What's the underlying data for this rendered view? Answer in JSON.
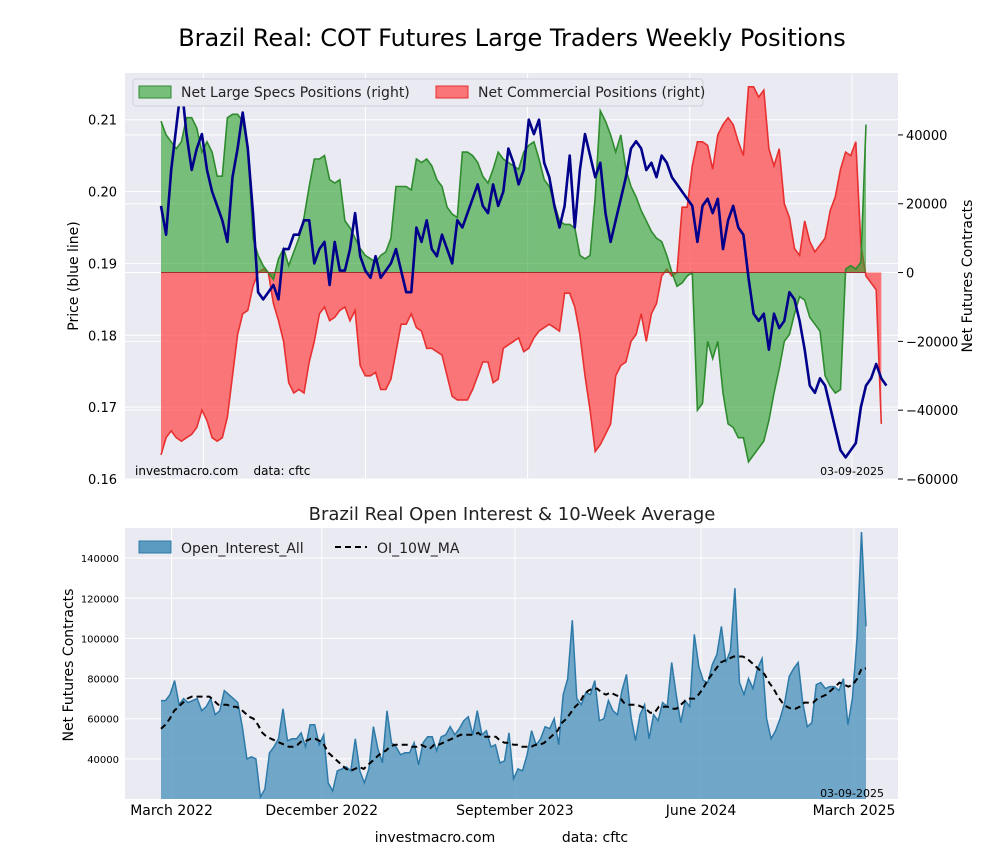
{
  "figure_title": "Brazil Real: COT Futures Large Traders Weekly Positions",
  "colors": {
    "plot_bg": "#eaeaf2",
    "grid": "#ffffff",
    "specs_fill": "#2ca02c",
    "specs_line": "#2e8b2e",
    "commercial_fill": "#ff4d4d",
    "commercial_line": "#e83030",
    "price_line": "#00008b",
    "oi_fill": "#5b9bc2",
    "oi_line": "#2d7aa8",
    "ma_line": "#000000"
  },
  "chart_data": [
    {
      "type": "area",
      "title": "",
      "ylabel_left": "Price (blue line)",
      "ylabel_right": "Net Futures Contracts",
      "left_ylim": [
        0.16,
        0.2165
      ],
      "left_yticks": [
        0.16,
        0.17,
        0.18,
        0.19,
        0.2,
        0.21
      ],
      "left_ytick_labels": [
        "0.16",
        "0.17",
        "0.18",
        "0.19",
        "0.20",
        "0.21"
      ],
      "right_ylim": [
        -60000,
        58000
      ],
      "right_yticks": [
        -60000,
        -40000,
        -20000,
        0,
        20000,
        40000
      ],
      "right_ytick_labels": [
        "−60000",
        "−40000",
        "−20000",
        "0",
        "20000",
        "40000"
      ],
      "legend": [
        "Net Large Specs Positions (right)",
        "Net Commercial Positions (right)"
      ],
      "legend_position": "top-left",
      "annotation_left": "investmacro.com    data: cftc",
      "annotation_right": "03-09-2025",
      "grid": true,
      "series": [
        {
          "name": "Net Large Specs Positions (right)",
          "values": [
            44000,
            40000,
            38000,
            36000,
            38000,
            45000,
            45000,
            42000,
            35000,
            38000,
            35000,
            28000,
            28000,
            45000,
            46000,
            46000,
            44000,
            37000,
            10000,
            5000,
            2000,
            0,
            -2000,
            4000,
            7000,
            2000,
            6000,
            10000,
            16000,
            25000,
            33000,
            33000,
            34000,
            27000,
            26000,
            27000,
            15000,
            13000,
            10000,
            7000,
            5000,
            4000,
            3000,
            5000,
            6000,
            10000,
            25000,
            25000,
            25000,
            24000,
            33000,
            32000,
            33000,
            31000,
            27000,
            25000,
            19000,
            17000,
            16000,
            35000,
            35000,
            34000,
            32000,
            28000,
            26000,
            30000,
            35000,
            33000,
            32000,
            31000,
            30000,
            35000,
            37000,
            38000,
            33000,
            27000,
            25000,
            20000,
            15000,
            14000,
            14000,
            13000,
            5000,
            4000,
            5000,
            22000,
            47000,
            44000,
            40000,
            35000,
            40000,
            30000,
            25000,
            22000,
            18000,
            15000,
            12000,
            10000,
            9000,
            5000,
            0,
            -4000,
            -3000,
            -1000,
            0,
            -40000,
            -38000,
            -20000,
            -25000,
            -20000,
            -35000,
            -44000,
            -45000,
            -48000,
            -48000,
            -55000,
            -53000,
            -51000,
            -49000,
            -43000,
            -35000,
            -28000,
            -20000,
            -18000,
            -12000,
            -7000,
            -8000,
            -13000,
            -15000,
            -17000,
            -30000,
            -33000,
            -35000,
            -34000,
            1000,
            2000,
            1000,
            3000,
            43000
          ]
        },
        {
          "name": "Net Commercial Positions (right)",
          "values": [
            -53000,
            -48000,
            -46000,
            -48000,
            -49000,
            -48000,
            -47000,
            -45000,
            -40000,
            -43000,
            -48000,
            -49000,
            -48000,
            -42000,
            -30000,
            -18000,
            -12000,
            -11000,
            -4000,
            0,
            1000,
            0,
            -9000,
            -14000,
            -20000,
            -32000,
            -35000,
            -34000,
            -35000,
            -26000,
            -20000,
            -12000,
            -10000,
            -14000,
            -13000,
            -11000,
            -10000,
            -14000,
            -11000,
            -27000,
            -30000,
            -30000,
            -29000,
            -34000,
            -34000,
            -31000,
            -23000,
            -15000,
            -15000,
            -12000,
            -16000,
            -17000,
            -22000,
            -22000,
            -23000,
            -24000,
            -30000,
            -36000,
            -37000,
            -37000,
            -37000,
            -34000,
            -30000,
            -26000,
            -26000,
            -32000,
            -31000,
            -22000,
            -21000,
            -20000,
            -19000,
            -23000,
            -22000,
            -19000,
            -17000,
            -16000,
            -15000,
            -16000,
            -17000,
            -6000,
            -6000,
            -10000,
            -18000,
            -30000,
            -40000,
            -52000,
            -50000,
            -47000,
            -44000,
            -30000,
            -27000,
            -26000,
            -20000,
            -18000,
            -12000,
            -20000,
            -12000,
            -9000,
            -1000,
            1000,
            -1000,
            0,
            19000,
            19000,
            31000,
            38000,
            38000,
            37000,
            30000,
            40000,
            43000,
            45000,
            43000,
            38000,
            34000,
            54000,
            54000,
            51000,
            53000,
            36000,
            31000,
            36000,
            20000,
            16000,
            7000,
            5000,
            15000,
            9000,
            6000,
            8000,
            10000,
            18000,
            22000,
            30000,
            35000,
            34000,
            38000,
            8000,
            -1000,
            -3000,
            -5000,
            -44000
          ]
        },
        {
          "name": "",
          "axis": "left",
          "values": [
            0.198,
            0.194,
            0.203,
            0.209,
            0.215,
            0.208,
            0.203,
            0.206,
            0.208,
            0.203,
            0.2,
            0.198,
            0.196,
            0.193,
            0.202,
            0.206,
            0.211,
            0.206,
            0.197,
            0.186,
            0.185,
            0.186,
            0.187,
            0.185,
            0.192,
            0.192,
            0.194,
            0.194,
            0.196,
            0.196,
            0.19,
            0.192,
            0.193,
            0.187,
            0.193,
            0.189,
            0.189,
            0.192,
            0.197,
            0.191,
            0.189,
            0.188,
            0.191,
            0.188,
            0.189,
            0.19,
            0.192,
            0.189,
            0.186,
            0.186,
            0.195,
            0.193,
            0.196,
            0.192,
            0.191,
            0.194,
            0.192,
            0.19,
            0.196,
            0.195,
            0.197,
            0.199,
            0.201,
            0.198,
            0.197,
            0.201,
            0.198,
            0.2,
            0.206,
            0.204,
            0.201,
            0.203,
            0.21,
            0.208,
            0.21,
            0.204,
            0.202,
            0.198,
            0.195,
            0.198,
            0.205,
            0.195,
            0.203,
            0.208,
            0.205,
            0.202,
            0.204,
            0.197,
            0.193,
            0.196,
            0.199,
            0.202,
            0.206,
            0.207,
            0.206,
            0.203,
            0.204,
            0.202,
            0.205,
            0.204,
            0.202,
            0.201,
            0.2,
            0.199,
            0.198,
            0.193,
            0.198,
            0.199,
            0.197,
            0.199,
            0.192,
            0.196,
            0.198,
            0.195,
            0.194,
            0.188,
            0.183,
            0.182,
            0.183,
            0.178,
            0.183,
            0.181,
            0.182,
            0.186,
            0.185,
            0.182,
            0.178,
            0.173,
            0.172,
            0.174,
            0.173,
            0.17,
            0.167,
            0.164,
            0.163,
            0.164,
            0.165,
            0.17,
            0.173,
            0.174,
            0.176,
            0.174,
            0.173
          ]
        }
      ]
    },
    {
      "type": "area",
      "title": "Brazil Real Open Interest & 10-Week Average",
      "ylabel": "Net Futures Contracts",
      "ylim": [
        20000,
        155000
      ],
      "yticks": [
        40000,
        60000,
        80000,
        100000,
        120000,
        140000
      ],
      "ytick_labels": [
        "40000",
        "60000",
        "80000",
        "100000",
        "120000",
        "140000"
      ],
      "x_ticks": [
        "March 2022",
        "December 2022",
        "September 2023",
        "June 2024",
        "March 2025"
      ],
      "legend": [
        "Open_Interest_All",
        "OI_10W_MA"
      ],
      "legend_position": "top-left",
      "annotation_right": "03-09-2025",
      "grid": true,
      "series": [
        {
          "name": "Open_Interest_All",
          "values": [
            69000,
            69000,
            72000,
            79000,
            67000,
            70000,
            68000,
            69000,
            70000,
            64000,
            66000,
            70000,
            62000,
            64000,
            74000,
            72000,
            70000,
            68000,
            56000,
            40000,
            41000,
            40000,
            21000,
            25000,
            43000,
            46000,
            50000,
            65000,
            49000,
            50000,
            50000,
            53000,
            46000,
            57000,
            57000,
            47000,
            52000,
            28000,
            24000,
            34000,
            35000,
            36000,
            34000,
            50000,
            34000,
            28000,
            35000,
            56000,
            45000,
            38000,
            64000,
            48000,
            46000,
            42000,
            43000,
            43000,
            48000,
            37000,
            48000,
            51000,
            51000,
            44000,
            51000,
            52000,
            56000,
            52000,
            55000,
            59000,
            61000,
            52000,
            64000,
            52000,
            54000,
            46000,
            47000,
            38000,
            39000,
            53000,
            30000,
            35000,
            34000,
            42000,
            54000,
            47000,
            50000,
            56000,
            55000,
            60000,
            47000,
            72000,
            80000,
            109000,
            70000,
            67000,
            73000,
            72000,
            79000,
            59000,
            60000,
            69000,
            64000,
            62000,
            74000,
            82000,
            61000,
            49000,
            62000,
            67000,
            50000,
            62000,
            59000,
            68000,
            66000,
            88000,
            72000,
            58000,
            69000,
            66000,
            102000,
            86000,
            79000,
            78000,
            87000,
            92000,
            106000,
            88000,
            94000,
            125000,
            78000,
            72000,
            80000,
            75000,
            85000,
            90000,
            60000,
            50000,
            54000,
            60000,
            68000,
            81000,
            85000,
            88000,
            68000,
            56000,
            58000,
            77000,
            78000,
            75000,
            76000,
            76000,
            74000,
            80000,
            57000,
            70000,
            100000,
            153000,
            106000
          ]
        },
        {
          "name": "OI_10W_MA",
          "values": [
            55000,
            57000,
            60000,
            64000,
            66000,
            68000,
            70000,
            71000,
            71000,
            71000,
            71000,
            71000,
            69000,
            67000,
            67000,
            67000,
            66000,
            66000,
            65000,
            63000,
            61000,
            60000,
            57000,
            53000,
            51000,
            50000,
            49000,
            48000,
            47000,
            46000,
            46000,
            47000,
            49000,
            49000,
            50000,
            50000,
            49000,
            47000,
            43000,
            41000,
            39000,
            37000,
            35000,
            34000,
            35000,
            36000,
            35000,
            37000,
            39000,
            41000,
            43000,
            44000,
            46000,
            47000,
            47000,
            47000,
            47000,
            46000,
            46000,
            47000,
            46000,
            45000,
            47000,
            47000,
            48000,
            49000,
            50000,
            51000,
            52000,
            52000,
            52000,
            52000,
            53000,
            51000,
            51000,
            51000,
            51000,
            49000,
            48000,
            48000,
            47000,
            47000,
            46000,
            46000,
            46000,
            47000,
            47000,
            48000,
            50000,
            52000,
            54000,
            58000,
            60000,
            63000,
            66000,
            68000,
            72000,
            74000,
            75000,
            75000,
            73000,
            72000,
            73000,
            72000,
            71000,
            68000,
            67000,
            67000,
            67000,
            66000,
            65000,
            63000,
            63000,
            66000,
            66000,
            66000,
            65000,
            65000,
            67000,
            69000,
            70000,
            70000,
            72000,
            75000,
            79000,
            82000,
            85000,
            88000,
            89000,
            90000,
            91000,
            91000,
            91000,
            90000,
            88000,
            86000,
            84000,
            82000,
            78000,
            75000,
            71000,
            68000,
            66000,
            65000,
            65000,
            66000,
            68000,
            68000,
            68000,
            70000,
            71000,
            72000,
            74000,
            76000,
            78000,
            77000,
            76000,
            77000,
            80000,
            85000,
            85000
          ]
        }
      ]
    }
  ],
  "footer": {
    "site": "investmacro.com",
    "data": "data: cftc"
  }
}
